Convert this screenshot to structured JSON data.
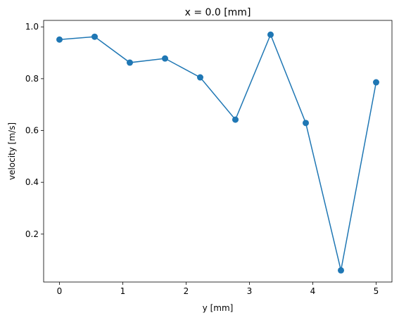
{
  "chart_data": {
    "type": "line",
    "title": "x = 0.0 [mm]",
    "xlabel": "y [mm]",
    "ylabel": "velocity [m/s]",
    "x": [
      0,
      0.5556,
      1.1111,
      1.6667,
      2.2222,
      2.7778,
      3.3333,
      3.8889,
      4.4444,
      5
    ],
    "series": [
      {
        "color": "#1f77b4",
        "values": [
          0.951,
          0.962,
          0.862,
          0.878,
          0.805,
          0.642,
          0.97,
          0.629,
          0.06,
          0.786
        ]
      }
    ],
    "xlim": [
      -0.25,
      5.25
    ],
    "xticks": [
      0,
      1,
      2,
      3,
      4,
      5
    ],
    "ylim": [
      0.015,
      1.025
    ],
    "yticks": [
      0.2,
      0.4,
      0.6,
      0.8,
      {
        "value": 1.0,
        "label": "1.0"
      }
    ]
  }
}
